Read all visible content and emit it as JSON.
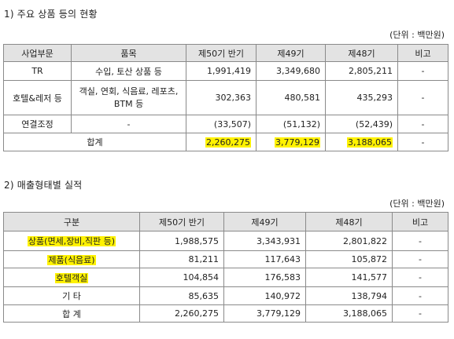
{
  "section1": {
    "title": "1) 주요 상품 등의 현황",
    "unit": "(단위 : 백만원)",
    "headers": [
      "사업부문",
      "품목",
      "제50기 반기",
      "제49기",
      "제48기",
      "비고"
    ],
    "rows": [
      [
        "TR",
        "수입, 토산 상품 등",
        "1,991,419",
        "3,349,680",
        "2,805,211",
        "-"
      ],
      [
        "호텔&레저 등",
        "객실, 연회, 식음료, 레포츠, BTM 등",
        "302,363",
        "480,581",
        "435,293",
        "-"
      ],
      [
        "연결조정",
        "-",
        "(33,507)",
        "(51,132)",
        "(52,439)",
        "-"
      ]
    ],
    "total": {
      "label": "합계",
      "v1": "2,260,275",
      "v2": "3,779,129",
      "v3": "3,188,065",
      "note": "-"
    }
  },
  "section2": {
    "title": "2) 매출형태별 실적",
    "unit": "(단위 : 백만원)",
    "headers": [
      "구분",
      "제50기 반기",
      "제49기",
      "제48기",
      "비고"
    ],
    "rows": [
      [
        "상품(면세,장비,직판 등)",
        "1,988,575",
        "3,343,931",
        "2,801,822",
        "-"
      ],
      [
        "제품(식음료)",
        "81,211",
        "117,643",
        "105,872",
        "-"
      ],
      [
        "호텔객실",
        "104,854",
        "176,583",
        "141,577",
        "-"
      ],
      [
        "기 타",
        "85,635",
        "140,972",
        "138,794",
        "-"
      ],
      [
        "합 계",
        "2,260,275",
        "3,779,129",
        "3,188,065",
        "-"
      ]
    ]
  },
  "colors": {
    "highlight": "#fff200",
    "header_bg": "#e3e3e3",
    "border": "#8a8a8a"
  }
}
